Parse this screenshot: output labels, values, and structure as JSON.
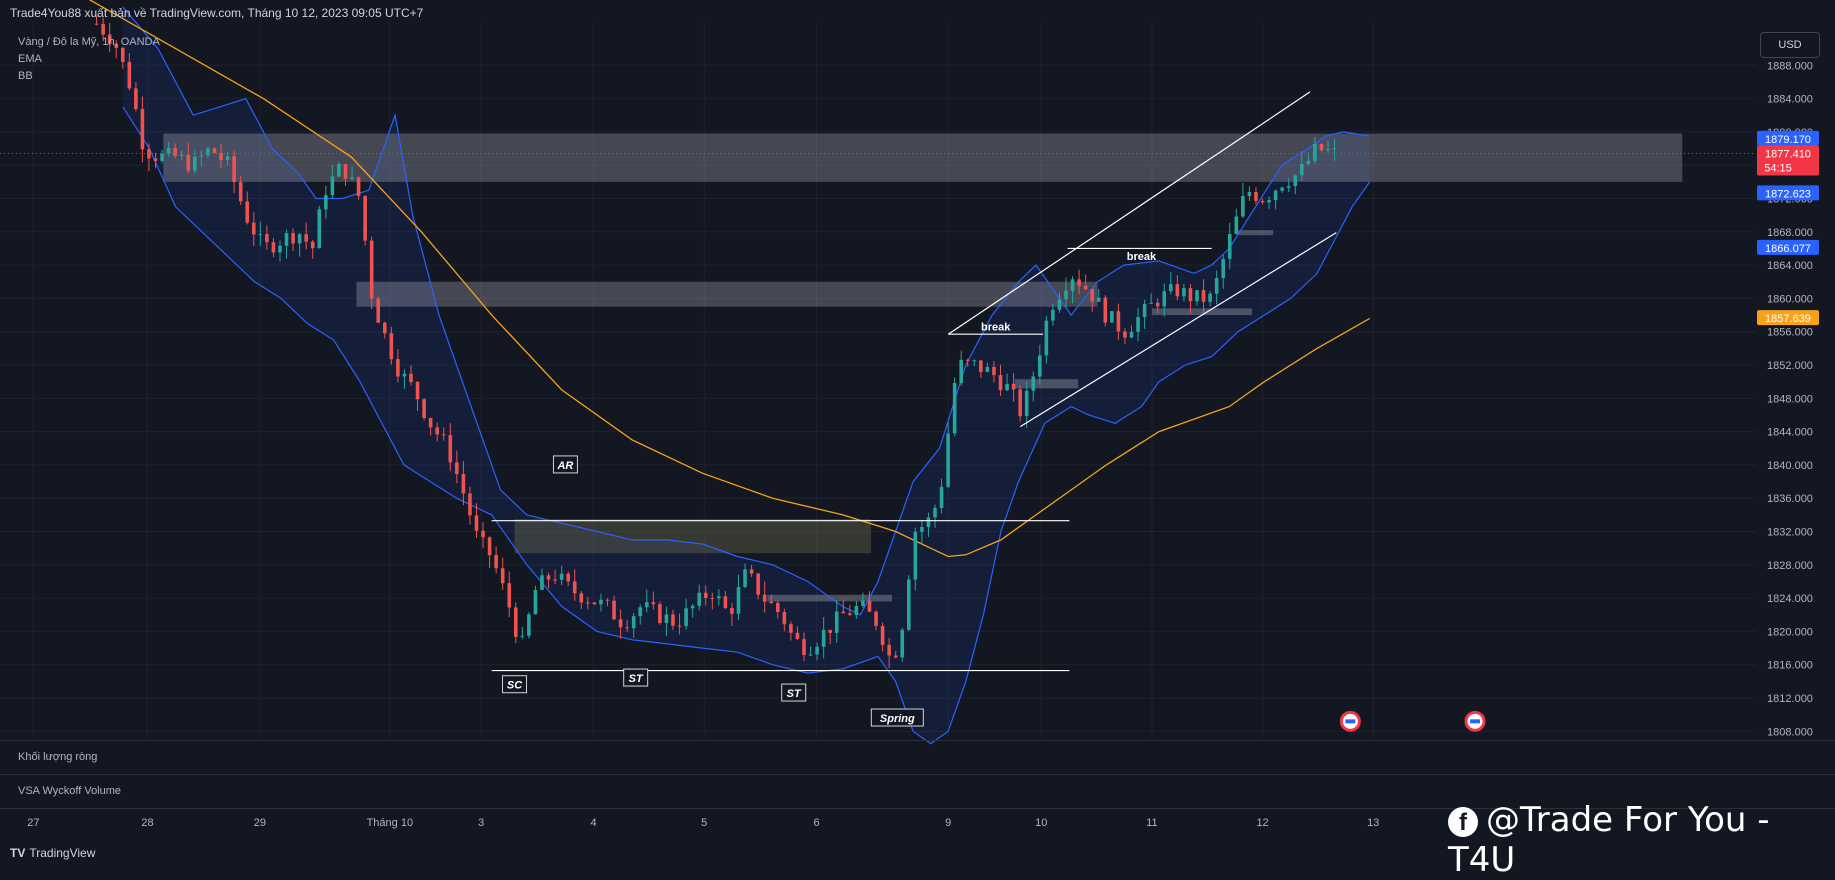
{
  "header": {
    "publisher": "Trade4You88 xuất bản về TradingView.com, Tháng 10 12, 2023 09:05 UTC+7",
    "symbol": "Vàng / Đô la Mỹ, 1h, OANDA",
    "indicators": [
      "EMA",
      "BB"
    ],
    "currency": "USD"
  },
  "panes": {
    "net_volume": "Khối lượng ròng",
    "vsa": "VSA Wyckoff Volume"
  },
  "footer": {
    "brand": "TradingView",
    "logo_icon": "tradingview-logo-icon"
  },
  "watermark": {
    "text": "@Trade For You - T4U",
    "icon": "facebook-icon"
  },
  "colors": {
    "background": "#131722",
    "up": "#26a69a",
    "down": "#ef5350",
    "bollinger": "#2962ff",
    "ema": "#f7a21b",
    "label_blue": "#2962ff",
    "label_red": "#f23645",
    "label_orange": "#f7a21b"
  },
  "chart_data": {
    "type": "candlestick",
    "title": "Vàng / Đô la Mỹ, 1h, OANDA",
    "x_ticks": [
      "27",
      "28",
      "29",
      "Tháng 10",
      "3",
      "4",
      "5",
      "6",
      "9",
      "10",
      "11",
      "12",
      "13"
    ],
    "y_ticks": [
      1808,
      1812,
      1816,
      1820,
      1824,
      1828,
      1832,
      1836,
      1840,
      1844,
      1848,
      1852,
      1856,
      1860,
      1864,
      1868,
      1872,
      1876,
      1880,
      1884,
      1888
    ],
    "ylim": [
      1807.2,
      1893.2
    ],
    "price_labels": [
      {
        "text": "1879.170",
        "value": 1879.17,
        "color": "#2962ff"
      },
      {
        "text": "1877.410",
        "value": 1877.41,
        "color": "#f23645",
        "countdown": "54:15"
      },
      {
        "text": "1872.623",
        "value": 1872.623,
        "color": "#2962ff"
      },
      {
        "text": "1866.077",
        "value": 1866.077,
        "color": "#2962ff"
      },
      {
        "text": "1857.639",
        "value": 1857.639,
        "color": "#f7a21b"
      }
    ],
    "ema": [
      [
        0.05,
        1896
      ],
      [
        0.1,
        1890
      ],
      [
        0.15,
        1884
      ],
      [
        0.2,
        1877
      ],
      [
        0.24,
        1868
      ],
      [
        0.28,
        1858
      ],
      [
        0.32,
        1849
      ],
      [
        0.36,
        1843
      ],
      [
        0.4,
        1839
      ],
      [
        0.44,
        1836
      ],
      [
        0.48,
        1834
      ],
      [
        0.51,
        1832
      ],
      [
        0.53,
        1830
      ],
      [
        0.54,
        1829
      ],
      [
        0.55,
        1829.2
      ],
      [
        0.57,
        1831
      ],
      [
        0.59,
        1834
      ],
      [
        0.61,
        1837
      ],
      [
        0.63,
        1840
      ],
      [
        0.66,
        1844
      ],
      [
        0.7,
        1847
      ],
      [
        0.72,
        1850
      ],
      [
        0.75,
        1854
      ],
      [
        0.78,
        1857.6
      ]
    ],
    "bb_upper": [
      [
        0.07,
        1895
      ],
      [
        0.09,
        1890
      ],
      [
        0.11,
        1882
      ],
      [
        0.125,
        1883
      ],
      [
        0.14,
        1884
      ],
      [
        0.155,
        1878
      ],
      [
        0.17,
        1875
      ],
      [
        0.18,
        1872
      ],
      [
        0.195,
        1872
      ],
      [
        0.21,
        1873
      ],
      [
        0.22,
        1879
      ],
      [
        0.225,
        1882
      ],
      [
        0.235,
        1870
      ],
      [
        0.25,
        1858
      ],
      [
        0.27,
        1846
      ],
      [
        0.285,
        1837
      ],
      [
        0.3,
        1834
      ],
      [
        0.32,
        1833
      ],
      [
        0.34,
        1832
      ],
      [
        0.36,
        1831
      ],
      [
        0.38,
        1831
      ],
      [
        0.4,
        1830.5
      ],
      [
        0.42,
        1829
      ],
      [
        0.44,
        1828
      ],
      [
        0.46,
        1826
      ],
      [
        0.48,
        1823
      ],
      [
        0.49,
        1822
      ],
      [
        0.5,
        1826
      ],
      [
        0.51,
        1832
      ],
      [
        0.52,
        1838
      ],
      [
        0.535,
        1842
      ],
      [
        0.55,
        1852
      ],
      [
        0.565,
        1858
      ],
      [
        0.58,
        1862
      ],
      [
        0.59,
        1864
      ],
      [
        0.6,
        1861
      ],
      [
        0.61,
        1858
      ],
      [
        0.625,
        1862
      ],
      [
        0.64,
        1864
      ],
      [
        0.66,
        1864.5
      ],
      [
        0.68,
        1863
      ],
      [
        0.69,
        1864
      ],
      [
        0.7,
        1866
      ],
      [
        0.715,
        1871
      ],
      [
        0.73,
        1876
      ],
      [
        0.745,
        1878
      ],
      [
        0.755,
        1879.5
      ],
      [
        0.765,
        1880
      ],
      [
        0.78,
        1879.5
      ]
    ],
    "bb_lower": [
      [
        0.07,
        1883
      ],
      [
        0.085,
        1878
      ],
      [
        0.1,
        1871
      ],
      [
        0.115,
        1868
      ],
      [
        0.13,
        1865
      ],
      [
        0.145,
        1862
      ],
      [
        0.16,
        1860
      ],
      [
        0.175,
        1857
      ],
      [
        0.19,
        1855
      ],
      [
        0.205,
        1850
      ],
      [
        0.215,
        1846
      ],
      [
        0.23,
        1840
      ],
      [
        0.245,
        1838
      ],
      [
        0.26,
        1836
      ],
      [
        0.28,
        1834
      ],
      [
        0.3,
        1828
      ],
      [
        0.32,
        1823
      ],
      [
        0.34,
        1820
      ],
      [
        0.36,
        1819
      ],
      [
        0.38,
        1818.5
      ],
      [
        0.4,
        1818
      ],
      [
        0.42,
        1817.5
      ],
      [
        0.44,
        1816
      ],
      [
        0.46,
        1815
      ],
      [
        0.48,
        1815.5
      ],
      [
        0.5,
        1817
      ],
      [
        0.51,
        1814
      ],
      [
        0.52,
        1808
      ],
      [
        0.53,
        1806.5
      ],
      [
        0.54,
        1808
      ],
      [
        0.55,
        1814
      ],
      [
        0.56,
        1822
      ],
      [
        0.57,
        1832
      ],
      [
        0.58,
        1838
      ],
      [
        0.595,
        1845
      ],
      [
        0.61,
        1847
      ],
      [
        0.62,
        1846
      ],
      [
        0.635,
        1845
      ],
      [
        0.65,
        1847
      ],
      [
        0.66,
        1850
      ],
      [
        0.675,
        1852
      ],
      [
        0.69,
        1853
      ],
      [
        0.705,
        1856
      ],
      [
        0.72,
        1858
      ],
      [
        0.735,
        1860
      ],
      [
        0.75,
        1863
      ],
      [
        0.76,
        1867
      ],
      [
        0.77,
        1871
      ],
      [
        0.78,
        1874
      ]
    ],
    "close_path": [
      [
        0.055,
        1893
      ],
      [
        0.065,
        1891
      ],
      [
        0.075,
        1885
      ],
      [
        0.082,
        1878
      ],
      [
        0.09,
        1877
      ],
      [
        0.1,
        1877
      ],
      [
        0.11,
        1876
      ],
      [
        0.12,
        1878
      ],
      [
        0.13,
        1876
      ],
      [
        0.14,
        1870
      ],
      [
        0.15,
        1866
      ],
      [
        0.16,
        1867
      ],
      [
        0.17,
        1868
      ],
      [
        0.178,
        1866
      ],
      [
        0.185,
        1873
      ],
      [
        0.195,
        1876
      ],
      [
        0.205,
        1872
      ],
      [
        0.212,
        1860
      ],
      [
        0.22,
        1855
      ],
      [
        0.228,
        1851
      ],
      [
        0.236,
        1849
      ],
      [
        0.245,
        1845
      ],
      [
        0.255,
        1842
      ],
      [
        0.265,
        1836
      ],
      [
        0.272,
        1831
      ],
      [
        0.28,
        1829
      ],
      [
        0.29,
        1823
      ],
      [
        0.297,
        1818
      ],
      [
        0.305,
        1825
      ],
      [
        0.315,
        1827
      ],
      [
        0.325,
        1825
      ],
      [
        0.335,
        1824
      ],
      [
        0.345,
        1823
      ],
      [
        0.355,
        1821
      ],
      [
        0.365,
        1823
      ],
      [
        0.375,
        1822
      ],
      [
        0.385,
        1821
      ],
      [
        0.395,
        1823
      ],
      [
        0.405,
        1825
      ],
      [
        0.415,
        1822
      ],
      [
        0.425,
        1827
      ],
      [
        0.435,
        1824
      ],
      [
        0.445,
        1822
      ],
      [
        0.452,
        1819
      ],
      [
        0.46,
        1818
      ],
      [
        0.47,
        1820
      ],
      [
        0.48,
        1822
      ],
      [
        0.49,
        1823
      ],
      [
        0.5,
        1821
      ],
      [
        0.508,
        1816
      ],
      [
        0.515,
        1822
      ],
      [
        0.52,
        1832
      ],
      [
        0.528,
        1833
      ],
      [
        0.535,
        1836
      ],
      [
        0.545,
        1852
      ],
      [
        0.555,
        1852
      ],
      [
        0.565,
        1851
      ],
      [
        0.575,
        1849
      ],
      [
        0.582,
        1846
      ],
      [
        0.59,
        1852
      ],
      [
        0.598,
        1859
      ],
      [
        0.61,
        1863
      ],
      [
        0.62,
        1861
      ],
      [
        0.63,
        1858
      ],
      [
        0.64,
        1856
      ],
      [
        0.65,
        1858
      ],
      [
        0.66,
        1860
      ],
      [
        0.67,
        1861
      ],
      [
        0.68,
        1860
      ],
      [
        0.69,
        1860
      ],
      [
        0.7,
        1867
      ],
      [
        0.71,
        1873
      ],
      [
        0.72,
        1872
      ],
      [
        0.73,
        1874
      ],
      [
        0.74,
        1875
      ],
      [
        0.75,
        1878
      ],
      [
        0.76,
        1877.4
      ]
    ],
    "zones": [
      {
        "x0": 0.093,
        "x1": 0.958,
        "y0": 1874.0,
        "y1": 1879.8,
        "fill": "rgba(200,200,210,0.28)"
      },
      {
        "x0": 0.203,
        "x1": 0.625,
        "y0": 1859.0,
        "y1": 1862.0,
        "fill": "rgba(200,200,210,0.28)"
      },
      {
        "x0": 0.293,
        "x1": 0.496,
        "y0": 1829.4,
        "y1": 1833.5,
        "fill": "rgba(120,120,80,0.35)"
      },
      {
        "x0": 0.437,
        "x1": 0.508,
        "y0": 1823.6,
        "y1": 1824.4,
        "fill": "rgba(160,160,170,0.4)"
      },
      {
        "x0": 0.578,
        "x1": 0.614,
        "y0": 1849.2,
        "y1": 1850.3,
        "fill": "rgba(160,160,170,0.4)"
      },
      {
        "x0": 0.656,
        "x1": 0.713,
        "y0": 1858.0,
        "y1": 1858.8,
        "fill": "rgba(160,160,170,0.4)"
      },
      {
        "x0": 0.705,
        "x1": 0.725,
        "y0": 1867.6,
        "y1": 1868.2,
        "fill": "rgba(160,160,170,0.4)"
      }
    ],
    "lines": [
      {
        "x0": 0.28,
        "y0": 1833.3,
        "x1": 0.609,
        "y1": 1833.3,
        "color": "#ffffff"
      },
      {
        "x0": 0.28,
        "y0": 1815.3,
        "x1": 0.609,
        "y1": 1815.3,
        "color": "#ffffff"
      },
      {
        "x0": 0.54,
        "y0": 1855.7,
        "x1": 0.746,
        "y1": 1884.8,
        "color": "#ffffff"
      },
      {
        "x0": 0.581,
        "y0": 1844.6,
        "x1": 0.761,
        "y1": 1867.9,
        "color": "#ffffff"
      },
      {
        "x0": 0.54,
        "y0": 1855.7,
        "x1": 0.594,
        "y1": 1855.7,
        "color": "#ffffff"
      },
      {
        "x0": 0.608,
        "y0": 1866.0,
        "x1": 0.69,
        "y1": 1866.0,
        "color": "#ffffff"
      }
    ],
    "annotations": [
      {
        "text": "AR",
        "x": 0.322,
        "y": 1840.0,
        "boxed": true
      },
      {
        "text": "SC",
        "x": 0.293,
        "y": 1813.6,
        "boxed": true
      },
      {
        "text": "ST",
        "x": 0.362,
        "y": 1814.4,
        "boxed": true
      },
      {
        "text": "ST",
        "x": 0.452,
        "y": 1812.6,
        "boxed": true
      },
      {
        "text": "Spring",
        "x": 0.511,
        "y": 1809.6,
        "boxed": true
      },
      {
        "text": "break",
        "x": 0.567,
        "y": 1856.6,
        "boxed": false
      },
      {
        "text": "break",
        "x": 0.65,
        "y": 1865.1,
        "boxed": false
      }
    ],
    "event_markers": [
      0.769,
      0.84
    ]
  }
}
